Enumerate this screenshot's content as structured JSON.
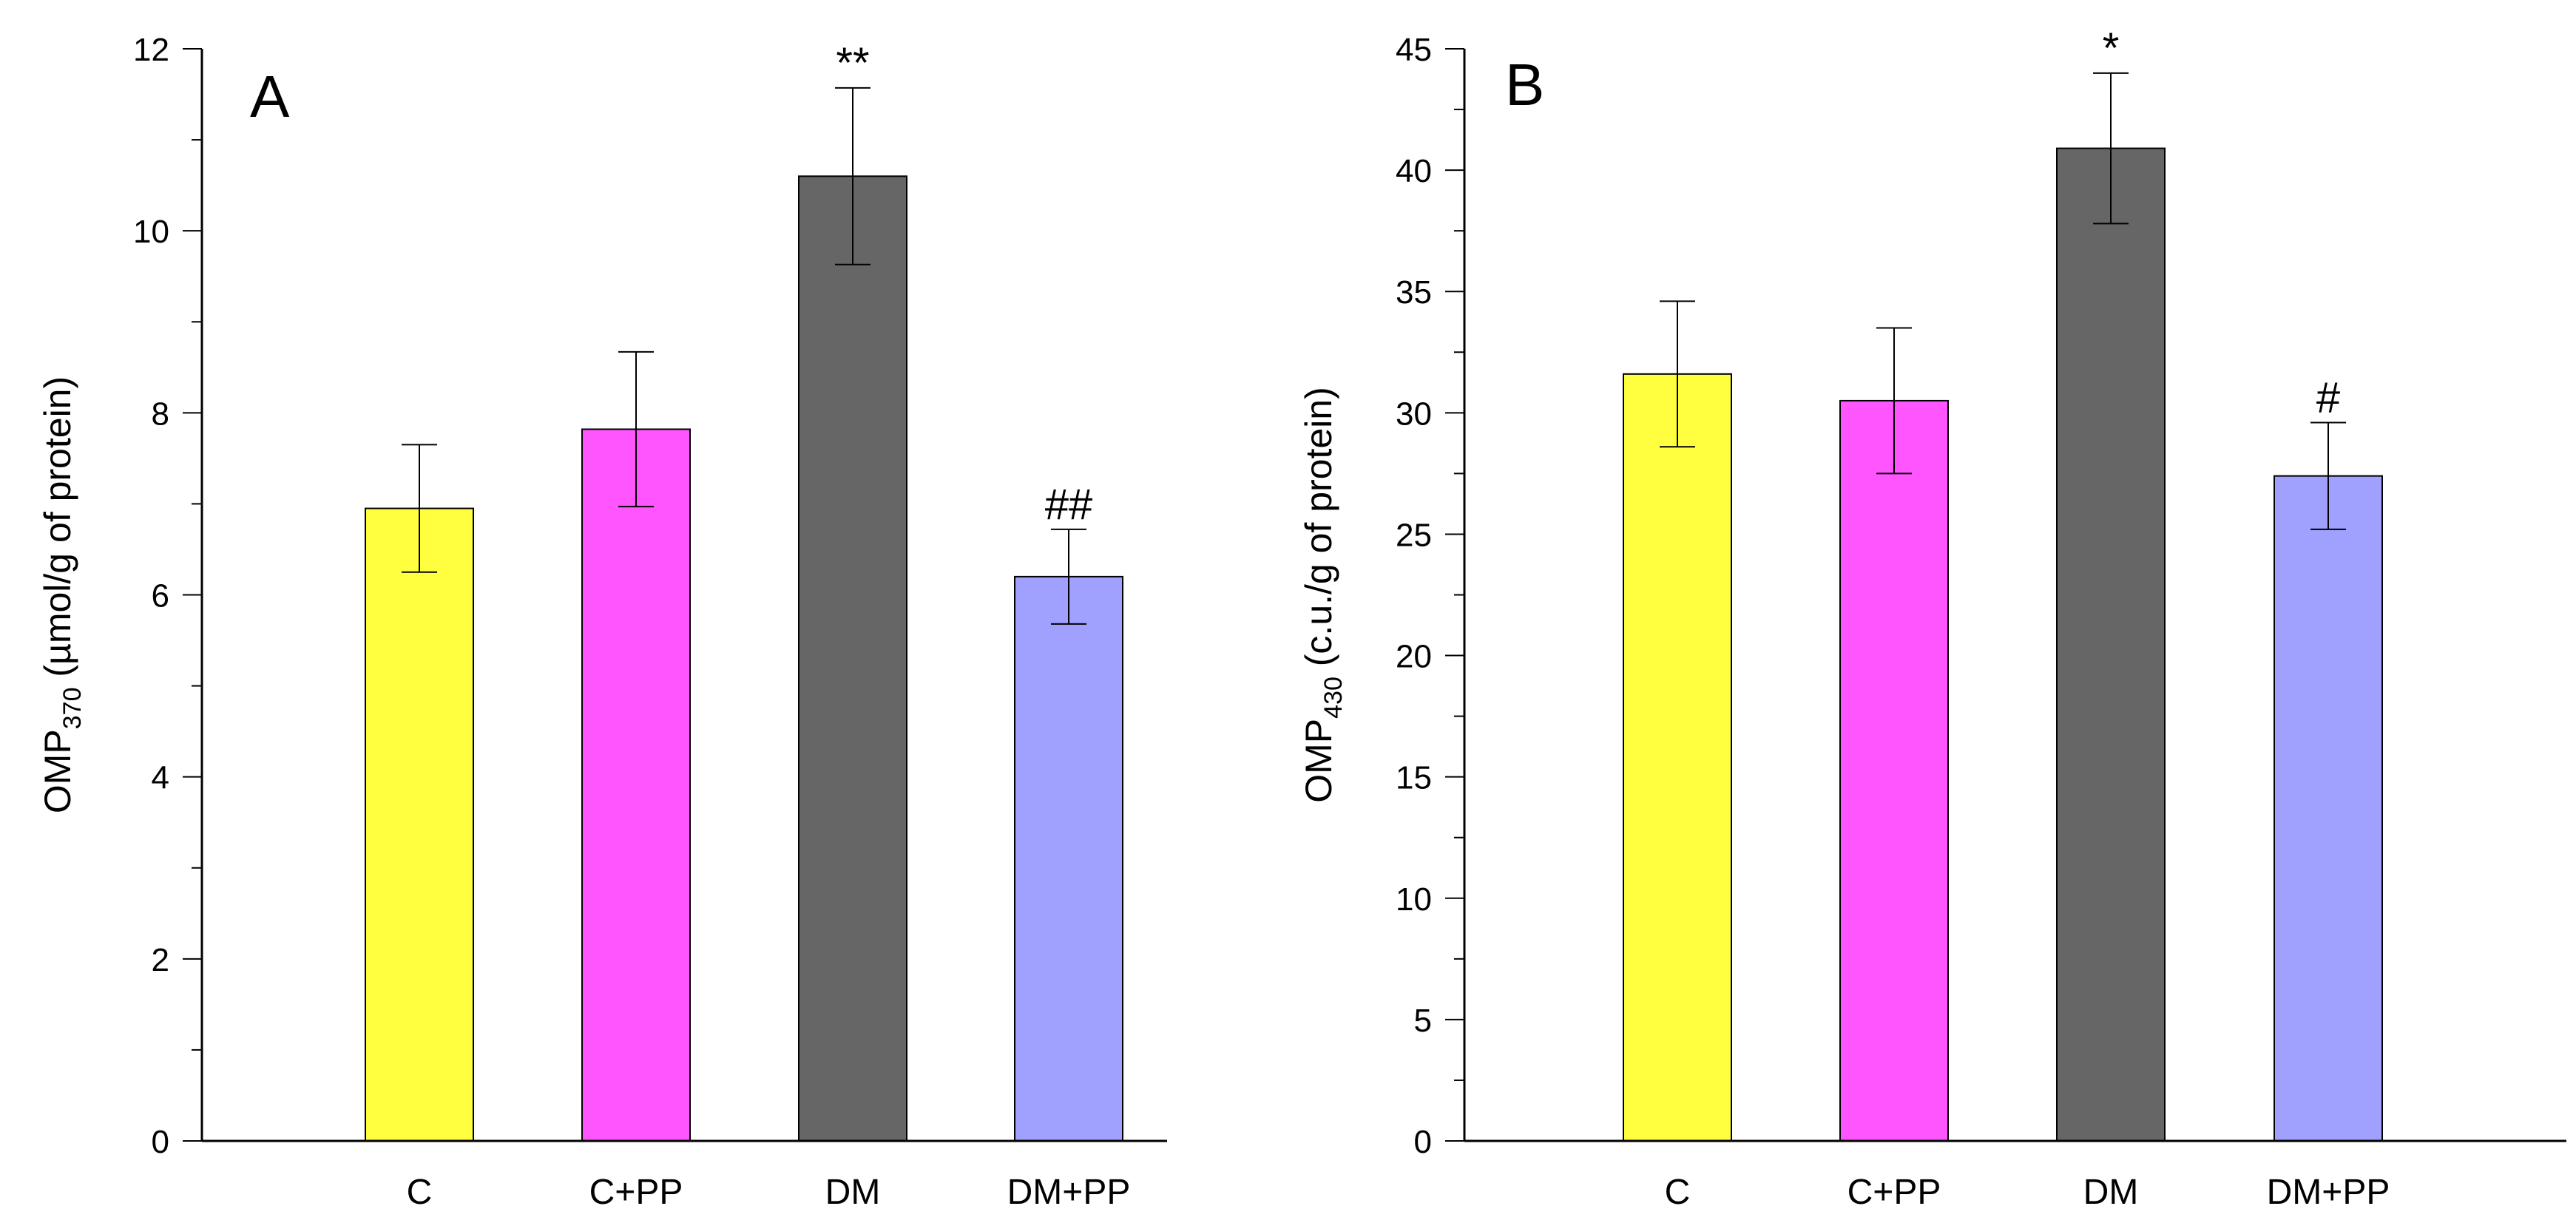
{
  "chart_data": [
    {
      "type": "bar",
      "panel_label": "A",
      "title": "",
      "xlabel": "",
      "ylabel": {
        "main": "OMP",
        "sub": "370",
        "rest": " (µmol/g of protein)"
      },
      "ylim": [
        0,
        12
      ],
      "y_major_ticks": [
        0,
        2,
        4,
        6,
        8,
        10,
        12
      ],
      "y_minor_step": 1,
      "grid": false,
      "categories": [
        "C",
        "C+PP",
        "DM",
        "DM+PP"
      ],
      "values": [
        6.95,
        7.82,
        10.6,
        6.2
      ],
      "errors": [
        0.7,
        0.85,
        0.97,
        0.52
      ],
      "colors": [
        "#ffff40",
        "#ff55ff",
        "#666666",
        "#a0a0ff"
      ],
      "annotations": [
        "",
        "",
        "**",
        "##"
      ]
    },
    {
      "type": "bar",
      "panel_label": "B",
      "title": "",
      "xlabel": "",
      "ylabel": {
        "main": "OMP",
        "sub": "430",
        "rest": " (c.u./g of protein)"
      },
      "ylim": [
        0,
        45
      ],
      "y_major_ticks": [
        0,
        5,
        10,
        15,
        20,
        25,
        30,
        35,
        40,
        45
      ],
      "y_minor_step": 2.5,
      "grid": false,
      "categories": [
        "C",
        "C+PP",
        "DM",
        "DM+PP"
      ],
      "values": [
        31.6,
        30.5,
        40.9,
        27.4
      ],
      "errors": [
        3.0,
        3.0,
        3.1,
        2.2
      ],
      "colors": [
        "#ffff40",
        "#ff55ff",
        "#666666",
        "#a0a0ff"
      ],
      "annotations": [
        "",
        "",
        "*",
        "#"
      ]
    }
  ]
}
